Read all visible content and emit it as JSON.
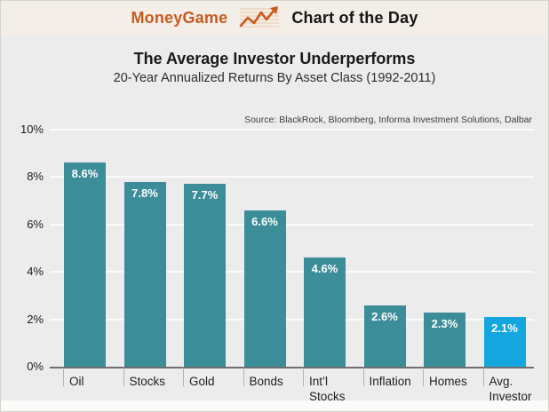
{
  "header": {
    "brand": "MoneyGame",
    "title": "Chart of the Day",
    "brand_color": "#c75b1e",
    "icon": "line-chart-arrow-icon"
  },
  "chart": {
    "title": "The Average Investor Underperforms",
    "subtitle": "20-Year Annualized Returns By Asset Class (1992-2011)",
    "source": "Source: BlackRock, Bloomberg, Informa Investment Solutions, Dalbar"
  },
  "chart_data": {
    "type": "bar",
    "title": "The Average Investor Underperforms",
    "subtitle": "20-Year Annualized Returns By Asset Class (1992-2011)",
    "source": "Source: BlackRock, Bloomberg, Informa Investment Solutions, Dalbar",
    "categories": [
      "Oil",
      "Stocks",
      "Gold",
      "Bonds",
      "Int’l Stocks",
      "Inflation",
      "Homes",
      "Avg. Investor"
    ],
    "values": [
      8.6,
      7.8,
      7.7,
      6.6,
      4.6,
      2.6,
      2.3,
      2.1
    ],
    "value_labels": [
      "8.6%",
      "7.8%",
      "7.7%",
      "6.6%",
      "4.6%",
      "2.6%",
      "2.3%",
      "2.1%"
    ],
    "xlabel": "",
    "ylabel": "",
    "ylim": [
      0,
      10
    ],
    "ytick_labels": [
      "0%",
      "2%",
      "4%",
      "6%",
      "8%",
      "10%"
    ],
    "grid": true,
    "legend": "none",
    "bar_color": "#3b8d99",
    "highlight_color": "#14a7df",
    "highlight_index": 7
  }
}
